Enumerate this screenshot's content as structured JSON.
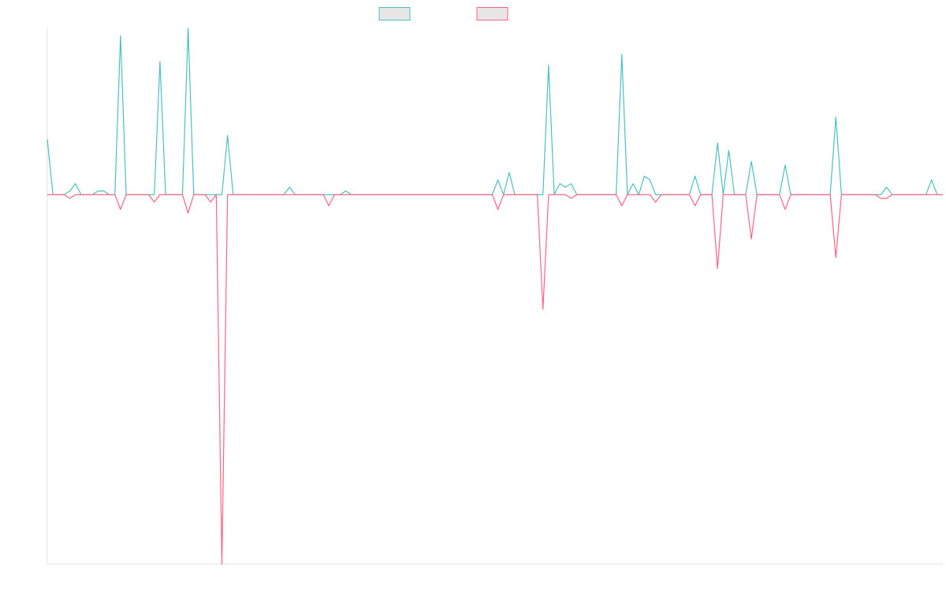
{
  "chart_data": {
    "type": "line",
    "title": "",
    "xlabel": "",
    "ylabel": "",
    "grid": false,
    "legend_position": "top-center",
    "ylim": [
      -100,
      45
    ],
    "x_count": 160,
    "series": [
      {
        "color": "#4bc0c0",
        "fill": "#e6e6e6",
        "values": [
          [
            0,
            15
          ],
          [
            4,
            1
          ],
          [
            5,
            3
          ],
          [
            9,
            1
          ],
          [
            10,
            1
          ],
          [
            13,
            43
          ],
          [
            20,
            36
          ],
          [
            25,
            45
          ],
          [
            32,
            16
          ],
          [
            43,
            2
          ],
          [
            53,
            1
          ],
          [
            80,
            4
          ],
          [
            82,
            6
          ],
          [
            89,
            35
          ],
          [
            91,
            3
          ],
          [
            92,
            2
          ],
          [
            93,
            3
          ],
          [
            102,
            38
          ],
          [
            104,
            3
          ],
          [
            106,
            5
          ],
          [
            107,
            4
          ],
          [
            115,
            5
          ],
          [
            119,
            14
          ],
          [
            121,
            12
          ],
          [
            125,
            9
          ],
          [
            131,
            8
          ],
          [
            140,
            21
          ],
          [
            149,
            2
          ],
          [
            157,
            4
          ]
        ]
      },
      {
        "color": "#ff6384",
        "fill": "#e6e6e6",
        "values": [
          [
            4,
            -1
          ],
          [
            13,
            -4
          ],
          [
            19,
            -2
          ],
          [
            25,
            -5
          ],
          [
            29,
            -2
          ],
          [
            31,
            -100
          ],
          [
            50,
            -3
          ],
          [
            80,
            -4
          ],
          [
            88,
            -31
          ],
          [
            93,
            -1
          ],
          [
            102,
            -3
          ],
          [
            108,
            -2
          ],
          [
            115,
            -3
          ],
          [
            119,
            -20
          ],
          [
            125,
            -12
          ],
          [
            131,
            -4
          ],
          [
            140,
            -17
          ],
          [
            148,
            -1
          ],
          [
            149,
            -1
          ]
        ]
      }
    ]
  }
}
